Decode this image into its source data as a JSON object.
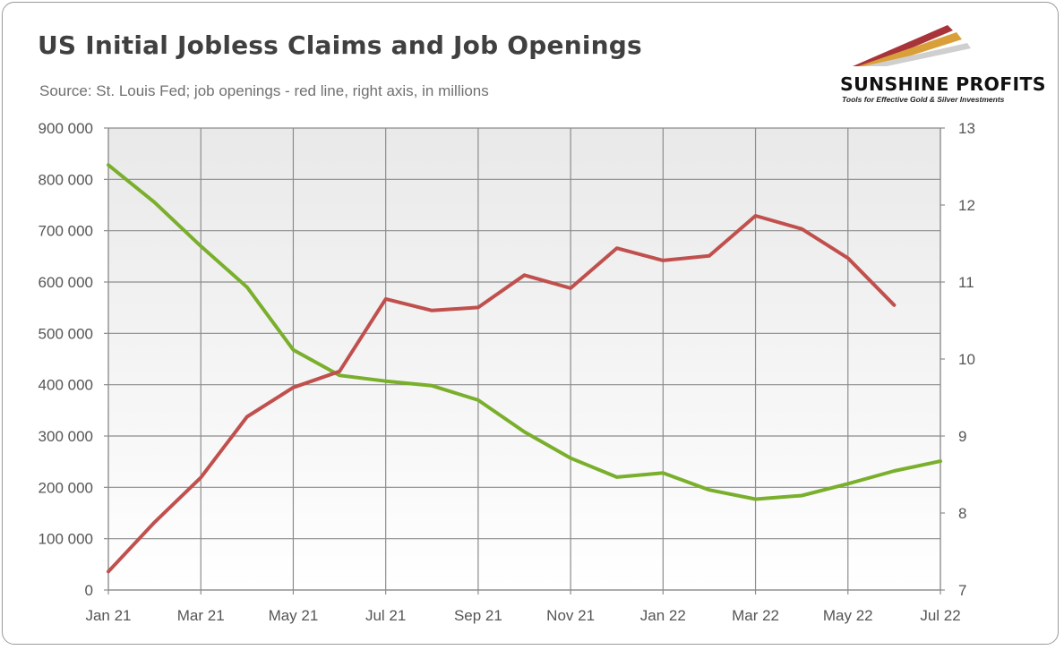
{
  "header": {
    "title": "US Initial Jobless Claims and Job Openings",
    "subtitle": "Source: St. Louis Fed; job openings - red line, right axis, in millions"
  },
  "logo": {
    "name": "SUNSHINE PROFITS",
    "tagline": "Tools for Effective Gold & Silver Investments"
  },
  "colors": {
    "claims": "#7aaf2c",
    "openings": "#c0504d",
    "plot_bg_top": "#e9e9e9",
    "plot_bg_bottom": "#ffffff",
    "grid": "#8c8c8c"
  },
  "chart_data": {
    "type": "line",
    "title": "US Initial Jobless Claims and Job Openings",
    "x": [
      "Jan 21",
      "Feb 21",
      "Mar 21",
      "Apr 21",
      "May 21",
      "Jun 21",
      "Jul 21",
      "Aug 21",
      "Sep 21",
      "Oct 21",
      "Nov 21",
      "Dec 21",
      "Jan 22",
      "Feb 22",
      "Mar 22",
      "Apr 22",
      "May 22",
      "Jun 22",
      "Jul 22"
    ],
    "x_tick_labels": [
      "Jan 21",
      "Mar 21",
      "May 21",
      "Jul 21",
      "Sep 21",
      "Nov 21",
      "Jan 22",
      "Mar 22",
      "May 22",
      "Jul 22"
    ],
    "y_left": {
      "range": [
        0,
        900000
      ],
      "tick_labels": [
        "0",
        "100 000",
        "200 000",
        "300 000",
        "400 000",
        "500 000",
        "600 000",
        "700 000",
        "800 000",
        "900 000"
      ]
    },
    "y_right": {
      "range": [
        7,
        13
      ],
      "tick_labels": [
        "7",
        "8",
        "9",
        "10",
        "11",
        "12",
        "13"
      ]
    },
    "grid": true,
    "series": [
      {
        "axis": "left",
        "color": "#7aaf2c",
        "values": [
          828000,
          755000,
          670000,
          590000,
          468000,
          418000,
          407000,
          398000,
          370000,
          308000,
          257000,
          220000,
          228000,
          195000,
          177000,
          184000,
          207000,
          232000,
          251000
        ]
      },
      {
        "axis": "right",
        "color": "#c0504d",
        "values": [
          7.24,
          7.88,
          8.46,
          9.25,
          9.63,
          9.84,
          10.78,
          10.63,
          10.67,
          11.09,
          10.92,
          11.44,
          11.28,
          11.34,
          11.86,
          11.69,
          11.31,
          10.7,
          null
        ]
      }
    ]
  }
}
